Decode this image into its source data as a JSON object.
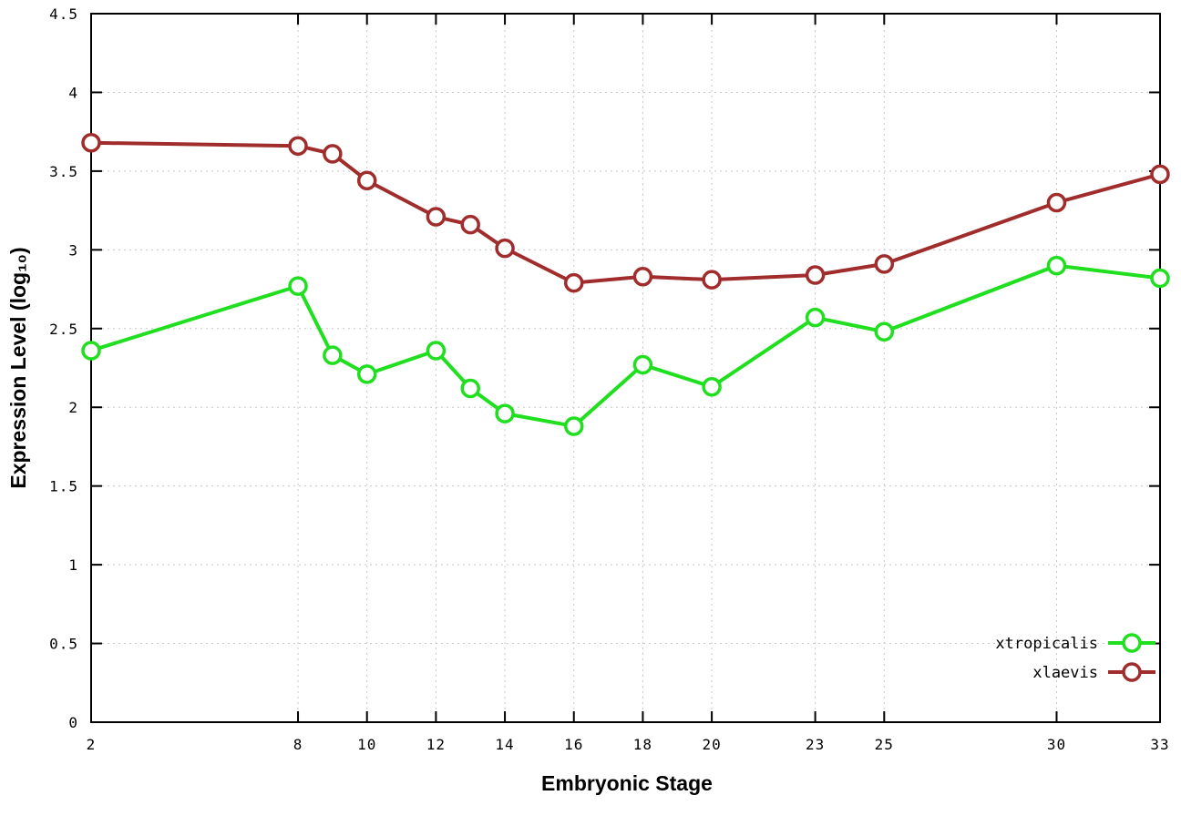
{
  "chart_data": {
    "type": "line",
    "x": [
      2,
      8,
      9,
      10,
      12,
      13,
      14,
      16,
      18,
      20,
      23,
      25,
      30,
      33
    ],
    "series": [
      {
        "name": "xtropicalis",
        "color": "#1fdf1f",
        "values": [
          2.36,
          2.77,
          2.33,
          2.21,
          2.36,
          2.12,
          1.96,
          1.88,
          2.27,
          2.13,
          2.57,
          2.48,
          2.9,
          2.82
        ]
      },
      {
        "name": "xlaevis",
        "color": "#a02c2c",
        "values": [
          3.68,
          3.66,
          3.61,
          3.44,
          3.21,
          3.16,
          3.01,
          2.79,
          2.83,
          2.81,
          2.84,
          2.91,
          3.3,
          3.48
        ]
      }
    ],
    "title": "",
    "xlabel": "Embryonic Stage",
    "ylabel": "Expression Level (log₁₀)",
    "xlim": [
      2,
      33
    ],
    "ylim": [
      0,
      4.5
    ],
    "xticks": [
      2,
      8,
      10,
      12,
      14,
      16,
      18,
      20,
      23,
      25,
      30,
      33
    ],
    "yticks": [
      0,
      0.5,
      1,
      1.5,
      2,
      2.5,
      3,
      3.5,
      4,
      4.5
    ],
    "grid": true,
    "legend_position": "bottom-right",
    "marker": "open-circle",
    "line_width": 4,
    "background": "#ffffff"
  }
}
